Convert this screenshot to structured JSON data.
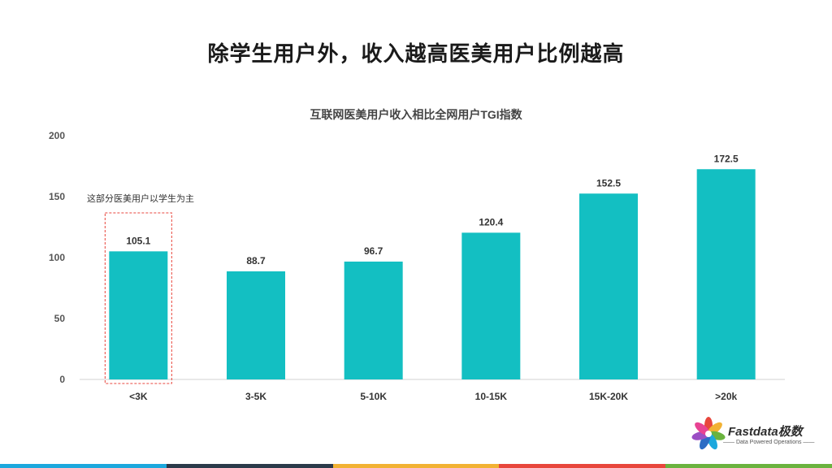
{
  "headline": "除学生用户外，收入越高医美用户比例越高",
  "annotation": "这部分医美用户以学生为主",
  "logo": {
    "name": "Fastdata极数",
    "tagline": "—— Data Powered Operations ——",
    "icon": "flower-icon"
  },
  "footer_colors": [
    "#1ca8dd",
    "#2b3a4a",
    "#f2b233",
    "#e8463c",
    "#6ab33e"
  ],
  "chart_data": {
    "type": "bar",
    "title": "互联网医美用户收入相比全网用户TGI指数",
    "categories": [
      "<3K",
      "3-5K",
      "5-10K",
      "10-15K",
      "15K-20K",
      ">20k"
    ],
    "values": [
      105.1,
      88.7,
      96.7,
      120.4,
      152.5,
      172.5
    ],
    "data_labels": [
      "105.1",
      "88.7",
      "96.7",
      "120.4",
      "152.5",
      "172.5"
    ],
    "yticks": [
      "0",
      "50",
      "100",
      "150",
      "200"
    ],
    "ylim": [
      0,
      200
    ],
    "bar_color": "#13bfc2",
    "highlight_color": "#e8463c",
    "grid": false,
    "legend": "none"
  }
}
